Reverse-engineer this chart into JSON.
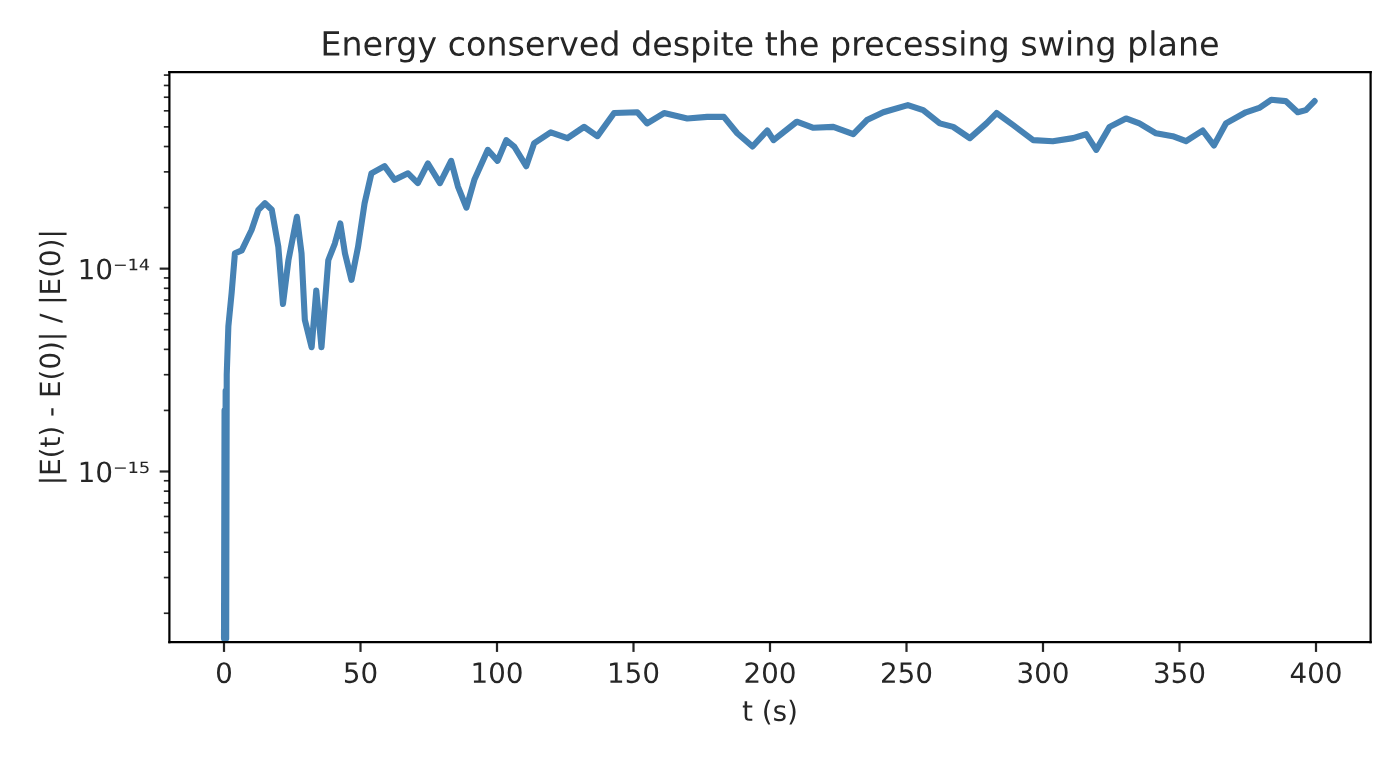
{
  "chart_data": {
    "type": "line",
    "title": "Energy conserved despite the precessing swing plane",
    "xlabel": "t (s)",
    "ylabel": "|E(t) - E(0)| / |E(0)|",
    "log": "y",
    "grid": false,
    "marker": "none",
    "line_style": "solid",
    "xlim": [
      -20,
      420
    ],
    "xticks": [
      0,
      50,
      100,
      150,
      200,
      250,
      300,
      350,
      400
    ],
    "ylim": [
      1.44e-16,
      9.3e-14
    ],
    "yticks": [
      {
        "value": 1e-15,
        "label": "10⁻¹⁵"
      },
      {
        "value": 1e-14,
        "label": "10⁻¹⁴"
      }
    ],
    "series": [
      {
        "color": "#4682b4",
        "x": [
          0,
          0.2,
          0.4,
          0.6,
          0.8,
          1.0,
          1.6,
          2.8,
          4.0,
          6.5,
          10.1,
          12.6,
          15.0,
          17.5,
          19.9,
          21.6,
          23.6,
          26.7,
          28.4,
          29.6,
          32.1,
          33.8,
          35.7,
          38.2,
          40.6,
          42.6,
          44.3,
          46.7,
          49.1,
          51.5,
          54.0,
          58.8,
          62.5,
          67.4,
          71.0,
          74.7,
          79.1,
          83.2,
          85.7,
          88.8,
          91.7,
          96.6,
          100.2,
          103.4,
          106.3,
          110.7,
          113.6,
          119.7,
          125.8,
          131.9,
          136.8,
          142.9,
          151.4,
          155.0,
          161.2,
          169.7,
          177.0,
          183.1,
          188.0,
          193.6,
          199.0,
          201.3,
          209.8,
          215.9,
          223.2,
          230.5,
          235.5,
          241.5,
          250.5,
          256.1,
          262.2,
          267.1,
          273.2,
          279.3,
          283.0,
          289.1,
          296.4,
          303.6,
          311.0,
          315.8,
          319.5,
          324.4,
          330.4,
          335.3,
          341.4,
          347.5,
          352.4,
          358.5,
          362.6,
          367.0,
          374.3,
          379.2,
          383.6,
          388.9,
          393.3,
          396.3,
          399.5
        ],
        "values": [
          1.5e-16,
          2e-15,
          1.5e-16,
          2.5e-15,
          1.5e-16,
          3e-15,
          5.2e-15,
          7.6e-15,
          1.19e-14,
          1.23e-14,
          1.55e-14,
          1.95e-14,
          2.1e-14,
          1.95e-14,
          1.28e-14,
          6.7e-15,
          1.1e-14,
          1.8e-14,
          1.19e-14,
          5.6e-15,
          4.1e-15,
          7.8e-15,
          4.1e-15,
          1.1e-14,
          1.33e-14,
          1.67e-14,
          1.19e-14,
          8.8e-15,
          1.28e-14,
          2.1e-14,
          2.95e-14,
          3.2e-14,
          2.74e-14,
          2.95e-14,
          2.64e-14,
          3.3e-14,
          2.64e-14,
          3.4e-14,
          2.54e-14,
          2e-14,
          2.74e-14,
          3.85e-14,
          3.4e-14,
          4.3e-14,
          4e-14,
          3.2e-14,
          4.15e-14,
          4.7e-14,
          4.4e-14,
          5e-14,
          4.5e-14,
          5.85e-14,
          5.9e-14,
          5.2e-14,
          5.85e-14,
          5.5e-14,
          5.6e-14,
          5.6e-14,
          4.65e-14,
          4e-14,
          4.8e-14,
          4.3e-14,
          5.3e-14,
          4.95e-14,
          5e-14,
          4.6e-14,
          5.4e-14,
          5.9e-14,
          6.4e-14,
          6.05e-14,
          5.2e-14,
          5e-14,
          4.4e-14,
          5.2e-14,
          5.85e-14,
          5.1e-14,
          4.3e-14,
          4.25e-14,
          4.4e-14,
          4.6e-14,
          3.85e-14,
          5e-14,
          5.5e-14,
          5.2e-14,
          4.65e-14,
          4.5e-14,
          4.25e-14,
          4.8e-14,
          4.05e-14,
          5.2e-14,
          5.9e-14,
          6.2e-14,
          6.8e-14,
          6.7e-14,
          5.9e-14,
          6.05e-14,
          6.7e-14
        ]
      }
    ]
  }
}
